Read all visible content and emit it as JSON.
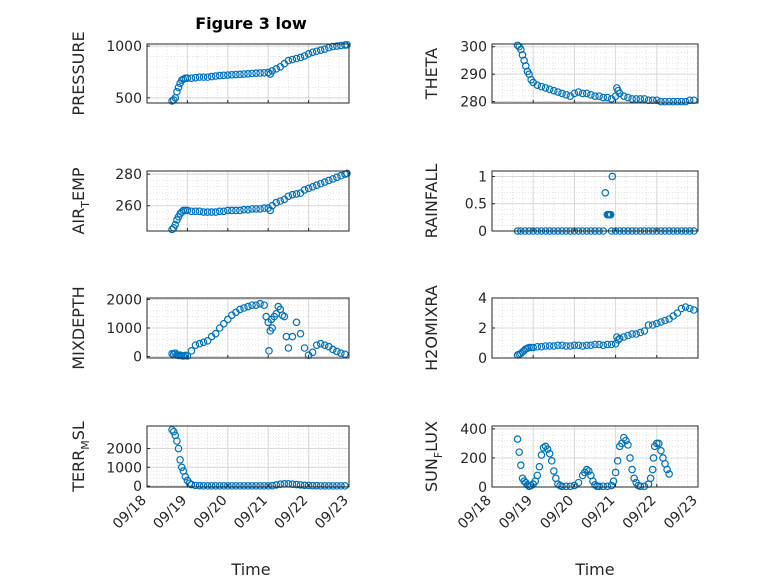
{
  "title": "Figure 3 low",
  "marker_color": "#0072bd",
  "x_ticks": [
    "09/18",
    "09/19",
    "09/20",
    "09/21",
    "09/22",
    "09/23"
  ],
  "x_label": "Time",
  "chart_data": [
    {
      "type": "scatter",
      "ylabel": "PRESSURE",
      "xlim": [
        0,
        5
      ],
      "ylim": [
        450,
        1020
      ],
      "yticks": [
        500,
        1000
      ],
      "ytick_labels": [
        "500",
        "1000"
      ],
      "x": [
        0.62,
        0.66,
        0.7,
        0.74,
        0.78,
        0.82,
        0.86,
        0.9,
        0.95,
        1.0,
        1.1,
        1.2,
        1.3,
        1.4,
        1.5,
        1.6,
        1.7,
        1.8,
        1.9,
        2.0,
        2.1,
        2.2,
        2.3,
        2.4,
        2.5,
        2.6,
        2.7,
        2.8,
        2.9,
        3.0,
        3.05,
        3.1,
        3.2,
        3.3,
        3.4,
        3.5,
        3.6,
        3.7,
        3.8,
        3.9,
        4.0,
        4.1,
        4.2,
        4.3,
        4.4,
        4.5,
        4.6,
        4.7,
        4.8,
        4.9,
        4.95
      ],
      "y": [
        470,
        480,
        500,
        560,
        600,
        640,
        670,
        680,
        690,
        690,
        690,
        695,
        700,
        700,
        700,
        705,
        710,
        715,
        718,
        720,
        722,
        725,
        727,
        730,
        732,
        735,
        738,
        740,
        742,
        745,
        730,
        760,
        780,
        800,
        830,
        860,
        870,
        880,
        890,
        905,
        925,
        940,
        950,
        960,
        970,
        985,
        995,
        1000,
        1005,
        1010,
        1012
      ]
    },
    {
      "type": "scatter",
      "ylabel": "THETA",
      "xlim": [
        0,
        5
      ],
      "ylim": [
        279.5,
        301
      ],
      "yticks": [
        280,
        290,
        300
      ],
      "ytick_labels": [
        "280",
        "290",
        "300"
      ],
      "x": [
        0.62,
        0.66,
        0.7,
        0.74,
        0.78,
        0.82,
        0.86,
        0.9,
        0.95,
        1.0,
        1.1,
        1.2,
        1.3,
        1.4,
        1.5,
        1.6,
        1.7,
        1.8,
        1.9,
        2.0,
        2.1,
        2.2,
        2.3,
        2.4,
        2.5,
        2.6,
        2.7,
        2.8,
        2.9,
        3.0,
        3.03,
        3.06,
        3.1,
        3.2,
        3.3,
        3.4,
        3.5,
        3.6,
        3.7,
        3.8,
        3.9,
        4.0,
        4.1,
        4.2,
        4.3,
        4.4,
        4.5,
        4.6,
        4.7,
        4.8,
        4.9
      ],
      "y": [
        300.5,
        300,
        299,
        297,
        295,
        293,
        291,
        290,
        288,
        287,
        286,
        285.5,
        285,
        284.5,
        284,
        283.5,
        283,
        282.5,
        282,
        283,
        283.5,
        283,
        283,
        282.5,
        282,
        282,
        281.5,
        281.5,
        281,
        282,
        285,
        284,
        283,
        282,
        281.5,
        281,
        281,
        281,
        281,
        280.5,
        280.5,
        280.5,
        280,
        280,
        280,
        280,
        280,
        280,
        280,
        280.5,
        280.5
      ]
    },
    {
      "type": "scatter",
      "ylabel": "AIR_TEMP",
      "xlim": [
        0,
        5
      ],
      "ylim": [
        244,
        282
      ],
      "yticks": [
        260,
        280
      ],
      "ytick_labels": [
        "260",
        "280"
      ],
      "x": [
        0.62,
        0.66,
        0.7,
        0.74,
        0.78,
        0.82,
        0.86,
        0.9,
        0.95,
        1.0,
        1.1,
        1.2,
        1.3,
        1.4,
        1.5,
        1.6,
        1.7,
        1.8,
        1.9,
        2.0,
        2.1,
        2.2,
        2.3,
        2.4,
        2.5,
        2.6,
        2.7,
        2.8,
        2.9,
        3.0,
        3.05,
        3.1,
        3.2,
        3.3,
        3.4,
        3.5,
        3.6,
        3.7,
        3.8,
        3.9,
        4.0,
        4.1,
        4.2,
        4.3,
        4.4,
        4.5,
        4.6,
        4.7,
        4.8,
        4.9,
        4.95
      ],
      "y": [
        245,
        246,
        248,
        251,
        253,
        255,
        256,
        257,
        257,
        257,
        256.5,
        256.5,
        256.5,
        256,
        256,
        256,
        256,
        256.5,
        256.5,
        257,
        257,
        257,
        257,
        257.5,
        257.5,
        258,
        258,
        258,
        258.5,
        258.5,
        257,
        260,
        262,
        263,
        264,
        266,
        267,
        267.5,
        268,
        270,
        271,
        272,
        273,
        274,
        275,
        276,
        277,
        278,
        279,
        280,
        280.5
      ]
    },
    {
      "type": "scatter",
      "ylabel": "RAINFALL",
      "xlim": [
        0,
        5
      ],
      "ylim": [
        0,
        1.1
      ],
      "yticks": [
        0,
        0.5,
        1
      ],
      "ytick_labels": [
        "0",
        "0.5",
        "1"
      ],
      "x": [
        0.62,
        0.7,
        0.8,
        0.9,
        1.0,
        1.1,
        1.2,
        1.3,
        1.4,
        1.5,
        1.6,
        1.7,
        1.8,
        1.9,
        2.0,
        2.1,
        2.2,
        2.3,
        2.4,
        2.5,
        2.6,
        2.7,
        2.75,
        2.8,
        2.82,
        2.84,
        2.86,
        2.88,
        2.9,
        2.92,
        3.0,
        3.1,
        3.2,
        3.3,
        3.4,
        3.5,
        3.6,
        3.7,
        3.8,
        3.9,
        4.0,
        4.1,
        4.2,
        4.3,
        4.4,
        4.5,
        4.6,
        4.7,
        4.8,
        4.9
      ],
      "y": [
        0,
        0,
        0,
        0,
        0,
        0,
        0,
        0,
        0,
        0,
        0,
        0,
        0,
        0,
        0,
        0,
        0,
        0,
        0,
        0,
        0,
        0,
        0.7,
        0.3,
        0.3,
        0.3,
        0.3,
        0.3,
        0,
        1.0,
        0,
        0,
        0,
        0,
        0,
        0,
        0,
        0,
        0,
        0,
        0,
        0,
        0,
        0,
        0,
        0,
        0,
        0,
        0,
        0
      ]
    },
    {
      "type": "scatter",
      "ylabel": "MIXDEPTH",
      "xlim": [
        0,
        5
      ],
      "ylim": [
        -50,
        2050
      ],
      "yticks": [
        0,
        1000,
        2000
      ],
      "ytick_labels": [
        "0",
        "1000",
        "2000"
      ],
      "x": [
        0.62,
        0.66,
        0.7,
        0.74,
        0.78,
        0.82,
        0.86,
        0.9,
        0.95,
        1.0,
        1.1,
        1.2,
        1.3,
        1.4,
        1.5,
        1.6,
        1.7,
        1.8,
        1.9,
        2.0,
        2.1,
        2.2,
        2.3,
        2.4,
        2.5,
        2.6,
        2.7,
        2.8,
        2.9,
        2.95,
        3.0,
        3.02,
        3.05,
        3.08,
        3.1,
        3.15,
        3.2,
        3.25,
        3.3,
        3.35,
        3.4,
        3.45,
        3.5,
        3.6,
        3.7,
        3.8,
        3.9,
        4.0,
        4.1,
        4.2,
        4.3,
        4.4,
        4.5,
        4.6,
        4.7,
        4.8,
        4.9
      ],
      "y": [
        100,
        80,
        120,
        60,
        40,
        50,
        30,
        20,
        40,
        20,
        200,
        400,
        450,
        500,
        550,
        700,
        800,
        1000,
        1150,
        1300,
        1450,
        1550,
        1650,
        1700,
        1750,
        1800,
        1800,
        1850,
        1800,
        1400,
        1200,
        200,
        900,
        1300,
        1000,
        1400,
        1500,
        1750,
        1650,
        1450,
        1400,
        700,
        300,
        700,
        1200,
        800,
        300,
        50,
        150,
        400,
        450,
        400,
        350,
        250,
        180,
        120,
        80
      ]
    },
    {
      "type": "scatter",
      "ylabel": "H2OMIXRA",
      "xlim": [
        0,
        5
      ],
      "ylim": [
        0,
        4
      ],
      "yticks": [
        0,
        2,
        4
      ],
      "ytick_labels": [
        "0",
        "2",
        "4"
      ],
      "x": [
        0.62,
        0.66,
        0.7,
        0.74,
        0.78,
        0.82,
        0.86,
        0.9,
        0.95,
        1.0,
        1.1,
        1.2,
        1.3,
        1.4,
        1.5,
        1.6,
        1.7,
        1.8,
        1.9,
        2.0,
        2.1,
        2.2,
        2.3,
        2.4,
        2.5,
        2.6,
        2.7,
        2.8,
        2.9,
        3.0,
        3.03,
        3.06,
        3.1,
        3.2,
        3.3,
        3.4,
        3.5,
        3.6,
        3.7,
        3.8,
        3.9,
        4.0,
        4.1,
        4.2,
        4.3,
        4.4,
        4.5,
        4.6,
        4.7,
        4.8,
        4.9
      ],
      "y": [
        0.2,
        0.25,
        0.3,
        0.4,
        0.5,
        0.6,
        0.65,
        0.7,
        0.7,
        0.7,
        0.75,
        0.75,
        0.8,
        0.8,
        0.8,
        0.85,
        0.85,
        0.8,
        0.8,
        0.85,
        0.85,
        0.8,
        0.85,
        0.85,
        0.9,
        0.9,
        0.85,
        0.9,
        0.9,
        0.95,
        1.4,
        1.2,
        1.3,
        1.4,
        1.5,
        1.6,
        1.6,
        1.7,
        1.8,
        2.2,
        2.2,
        2.3,
        2.4,
        2.5,
        2.6,
        2.8,
        3.0,
        3.3,
        3.4,
        3.3,
        3.2
      ]
    },
    {
      "type": "scatter",
      "ylabel": "TERR_MSL",
      "xlim": [
        0,
        5
      ],
      "ylim": [
        -50,
        3200
      ],
      "yticks": [
        0,
        1000,
        2000
      ],
      "ytick_labels": [
        "0",
        "1000",
        "2000"
      ],
      "x": [
        0.62,
        0.66,
        0.7,
        0.74,
        0.78,
        0.82,
        0.86,
        0.9,
        0.95,
        1.0,
        1.05,
        1.1,
        1.2,
        1.3,
        1.4,
        1.5,
        1.6,
        1.7,
        1.8,
        1.9,
        2.0,
        2.1,
        2.2,
        2.3,
        2.4,
        2.5,
        2.6,
        2.7,
        2.8,
        2.9,
        3.0,
        3.1,
        3.2,
        3.3,
        3.4,
        3.5,
        3.6,
        3.7,
        3.8,
        3.9,
        4.0,
        4.1,
        4.2,
        4.3,
        4.4,
        4.5,
        4.6,
        4.7,
        4.8,
        4.9
      ],
      "y": [
        3000,
        2900,
        2700,
        2400,
        2000,
        1400,
        1000,
        800,
        500,
        300,
        150,
        80,
        30,
        20,
        10,
        10,
        10,
        10,
        10,
        10,
        10,
        10,
        10,
        10,
        10,
        10,
        10,
        10,
        10,
        10,
        10,
        20,
        60,
        100,
        120,
        120,
        100,
        80,
        60,
        40,
        30,
        20,
        20,
        10,
        10,
        10,
        10,
        10,
        10,
        10
      ]
    },
    {
      "type": "scatter",
      "ylabel": "SUN_FLUX",
      "xlim": [
        0,
        5
      ],
      "ylim": [
        0,
        420
      ],
      "yticks": [
        0,
        200,
        400
      ],
      "ytick_labels": [
        "0",
        "200",
        "400"
      ],
      "x": [
        0.62,
        0.66,
        0.7,
        0.74,
        0.78,
        0.82,
        0.86,
        0.9,
        0.95,
        1.0,
        1.05,
        1.1,
        1.15,
        1.2,
        1.25,
        1.3,
        1.35,
        1.4,
        1.45,
        1.5,
        1.55,
        1.6,
        1.65,
        1.7,
        1.8,
        1.9,
        2.0,
        2.1,
        2.2,
        2.25,
        2.3,
        2.35,
        2.4,
        2.45,
        2.5,
        2.55,
        2.6,
        2.7,
        2.8,
        2.9,
        2.95,
        3.0,
        3.05,
        3.1,
        3.15,
        3.2,
        3.25,
        3.3,
        3.35,
        3.4,
        3.45,
        3.5,
        3.55,
        3.6,
        3.7,
        3.8,
        3.85,
        3.9,
        3.92,
        3.95,
        4.0,
        4.05,
        4.1,
        4.15,
        4.2,
        4.25,
        4.3
      ],
      "y": [
        330,
        240,
        150,
        60,
        40,
        30,
        15,
        5,
        10,
        20,
        40,
        80,
        140,
        220,
        270,
        280,
        260,
        230,
        180,
        110,
        60,
        20,
        10,
        5,
        5,
        5,
        10,
        30,
        80,
        100,
        120,
        110,
        80,
        40,
        15,
        5,
        5,
        5,
        5,
        10,
        40,
        100,
        180,
        280,
        300,
        340,
        320,
        290,
        200,
        120,
        60,
        30,
        10,
        5,
        5,
        20,
        60,
        120,
        200,
        280,
        300,
        300,
        250,
        200,
        160,
        120,
        90
      ]
    }
  ]
}
